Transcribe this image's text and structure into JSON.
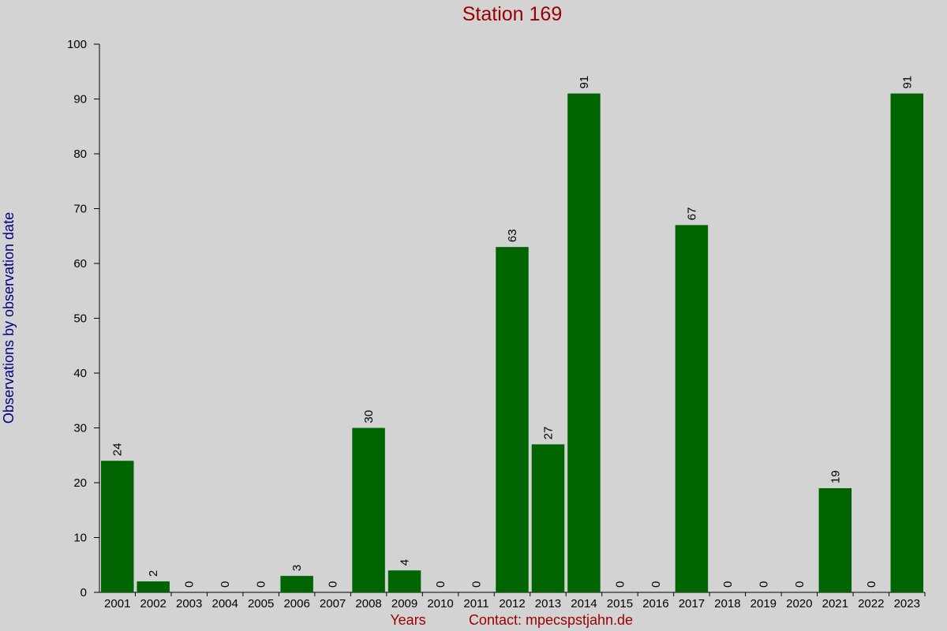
{
  "chart_data": {
    "type": "bar",
    "title": "Station 169",
    "y_label": "Observations by observation date",
    "x_label": "Years",
    "annotation": "Contact: mpecspstjahn.de",
    "categories": [
      "2001",
      "2002",
      "2003",
      "2004",
      "2005",
      "2006",
      "2007",
      "2008",
      "2009",
      "2010",
      "2011",
      "2012",
      "2013",
      "2014",
      "2015",
      "2016",
      "2017",
      "2018",
      "2019",
      "2020",
      "2021",
      "2022",
      "2023"
    ],
    "values": [
      24,
      2,
      0,
      0,
      0,
      3,
      0,
      30,
      4,
      0,
      0,
      63,
      27,
      91,
      0,
      0,
      67,
      0,
      0,
      0,
      19,
      0,
      91
    ],
    "color": "#006400",
    "ylim": [
      0,
      100
    ],
    "yticks": [
      0,
      10,
      20,
      30,
      40,
      50,
      60,
      70,
      80,
      90,
      100
    ],
    "grid": false
  }
}
